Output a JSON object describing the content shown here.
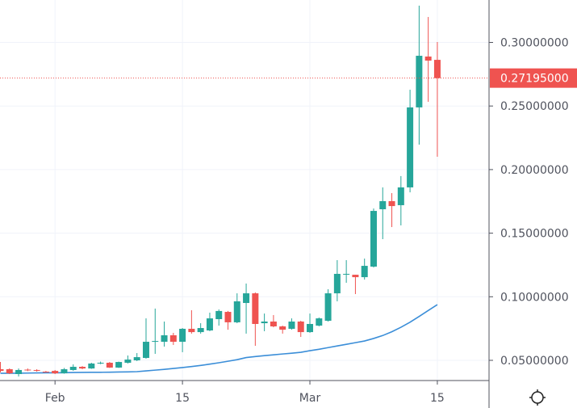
{
  "chart_data": {
    "type": "candlestick",
    "title": "",
    "xlabel": "",
    "ylabel": "",
    "ylim": [
      0.0341,
      0.3334
    ],
    "grid": true,
    "colors": {
      "up": "#26a69a",
      "down": "#ef5350",
      "ma": "#3b8ed8",
      "grid": "#f0f3fa",
      "axis": "#50535e",
      "last_price": "#ef5350"
    },
    "dates": [
      "Jan 26",
      "Jan 27",
      "Jan 28",
      "Jan 29",
      "Jan 30",
      "Jan 31",
      "Feb 1",
      "Feb 2",
      "Feb 3",
      "Feb 4",
      "Feb 5",
      "Feb 6",
      "Feb 7",
      "Feb 8",
      "Feb 9",
      "Feb 10",
      "Feb 11",
      "Feb 12",
      "Feb 13",
      "Feb 14",
      "Feb 15",
      "Feb 16",
      "Feb 17",
      "Feb 18",
      "Feb 19",
      "Feb 20",
      "Feb 21",
      "Feb 22",
      "Feb 23",
      "Feb 24",
      "Feb 25",
      "Feb 26",
      "Feb 27",
      "Feb 28",
      "Mar 1",
      "Mar 2",
      "Mar 3",
      "Mar 4",
      "Mar 5",
      "Mar 6",
      "Mar 7",
      "Mar 8",
      "Mar 9",
      "Mar 10",
      "Mar 11",
      "Mar 12",
      "Mar 13",
      "Mar 14",
      "Mar 15"
    ],
    "ohlc": [
      [
        0.043,
        0.0487,
        0.0405,
        0.0417
      ],
      [
        0.043,
        0.0437,
        0.0392,
        0.0398
      ],
      [
        0.0392,
        0.0436,
        0.0373,
        0.0424
      ],
      [
        0.0427,
        0.0436,
        0.0415,
        0.0421
      ],
      [
        0.0424,
        0.043,
        0.0411,
        0.0418
      ],
      [
        0.0411,
        0.0417,
        0.0405,
        0.0408
      ],
      [
        0.0417,
        0.0424,
        0.0392,
        0.0398
      ],
      [
        0.0398,
        0.044,
        0.0395,
        0.043
      ],
      [
        0.0424,
        0.0468,
        0.0418,
        0.0449
      ],
      [
        0.0449,
        0.0455,
        0.043,
        0.0436
      ],
      [
        0.0436,
        0.0481,
        0.0433,
        0.0475
      ],
      [
        0.0475,
        0.049,
        0.047,
        0.0481
      ],
      [
        0.0481,
        0.0487,
        0.044,
        0.0443
      ],
      [
        0.0443,
        0.049,
        0.044,
        0.0487
      ],
      [
        0.0481,
        0.0538,
        0.0475,
        0.0506
      ],
      [
        0.05,
        0.0557,
        0.0494,
        0.0525
      ],
      [
        0.0519,
        0.083,
        0.0513,
        0.0646
      ],
      [
        0.0646,
        0.0907,
        0.0551,
        0.0652
      ],
      [
        0.0646,
        0.0805,
        0.0608,
        0.0697
      ],
      [
        0.0697,
        0.0716,
        0.0621,
        0.0646
      ],
      [
        0.0646,
        0.0754,
        0.0564,
        0.0748
      ],
      [
        0.0748,
        0.0894,
        0.071,
        0.0722
      ],
      [
        0.0722,
        0.0792,
        0.071,
        0.0754
      ],
      [
        0.0735,
        0.0875,
        0.0729,
        0.083
      ],
      [
        0.0824,
        0.09,
        0.0773,
        0.0888
      ],
      [
        0.0881,
        0.0888,
        0.0741,
        0.0799
      ],
      [
        0.0799,
        0.1027,
        0.0792,
        0.0964
      ],
      [
        0.0951,
        0.1104,
        0.071,
        0.1027
      ],
      [
        0.1027,
        0.1034,
        0.0614,
        0.0786
      ],
      [
        0.0792,
        0.0868,
        0.0729,
        0.0805
      ],
      [
        0.0805,
        0.0856,
        0.076,
        0.0767
      ],
      [
        0.0767,
        0.0773,
        0.071,
        0.0741
      ],
      [
        0.0748,
        0.083,
        0.0741,
        0.0805
      ],
      [
        0.0805,
        0.0811,
        0.0684,
        0.0722
      ],
      [
        0.0722,
        0.0868,
        0.0716,
        0.0786
      ],
      [
        0.0773,
        0.0837,
        0.0767,
        0.083
      ],
      [
        0.0811,
        0.1059,
        0.0805,
        0.1027
      ],
      [
        0.1027,
        0.1288,
        0.0964,
        0.118
      ],
      [
        0.1175,
        0.1288,
        0.111,
        0.118
      ],
      [
        0.1173,
        0.1173,
        0.1021,
        0.1154
      ],
      [
        0.1154,
        0.13,
        0.1135,
        0.1243
      ],
      [
        0.1237,
        0.1694,
        0.123,
        0.1675
      ],
      [
        0.1688,
        0.186,
        0.1453,
        0.1752
      ],
      [
        0.1752,
        0.1815,
        0.1548,
        0.1713
      ],
      [
        0.172,
        0.1949,
        0.1561,
        0.186
      ],
      [
        0.186,
        0.2628,
        0.1821,
        0.2489
      ],
      [
        0.2489,
        0.3289,
        0.2196,
        0.2895
      ],
      [
        0.2889,
        0.32,
        0.2533,
        0.2857
      ],
      [
        0.2863,
        0.3003,
        0.2101,
        0.27195
      ]
    ],
    "moving_average": [
      0.0398,
      0.0399,
      0.0399,
      0.04,
      0.0401,
      0.0402,
      0.0402,
      0.0403,
      0.0404,
      0.0405,
      0.0406,
      0.0406,
      0.0407,
      0.0408,
      0.0409,
      0.0411,
      0.0417,
      0.0423,
      0.0429,
      0.0436,
      0.0443,
      0.0451,
      0.046,
      0.047,
      0.0481,
      0.0493,
      0.0505,
      0.0522,
      0.053,
      0.0537,
      0.0543,
      0.055,
      0.0556,
      0.0563,
      0.0576,
      0.0587,
      0.06,
      0.0613,
      0.0626,
      0.0639,
      0.0652,
      0.0672,
      0.0695,
      0.0725,
      0.076,
      0.08,
      0.0845,
      0.0892,
      0.0938
    ],
    "x_ticks": [
      {
        "date": "Feb 1",
        "label": "Feb"
      },
      {
        "date": "Feb 15",
        "label": "15"
      },
      {
        "date": "Mar 1",
        "label": "Mar"
      },
      {
        "date": "Mar 15",
        "label": "15"
      }
    ],
    "y_ticks": [
      0.05,
      0.1,
      0.15,
      0.2,
      0.25,
      0.3
    ],
    "y_tick_labels": [
      "0.05000000",
      "0.10000000",
      "0.15000000",
      "0.20000000",
      "0.25000000",
      "0.30000000"
    ],
    "last_price": 0.27195,
    "last_price_label": "0.27195000"
  },
  "toolbar": {
    "settings_icon": "gear-icon"
  }
}
